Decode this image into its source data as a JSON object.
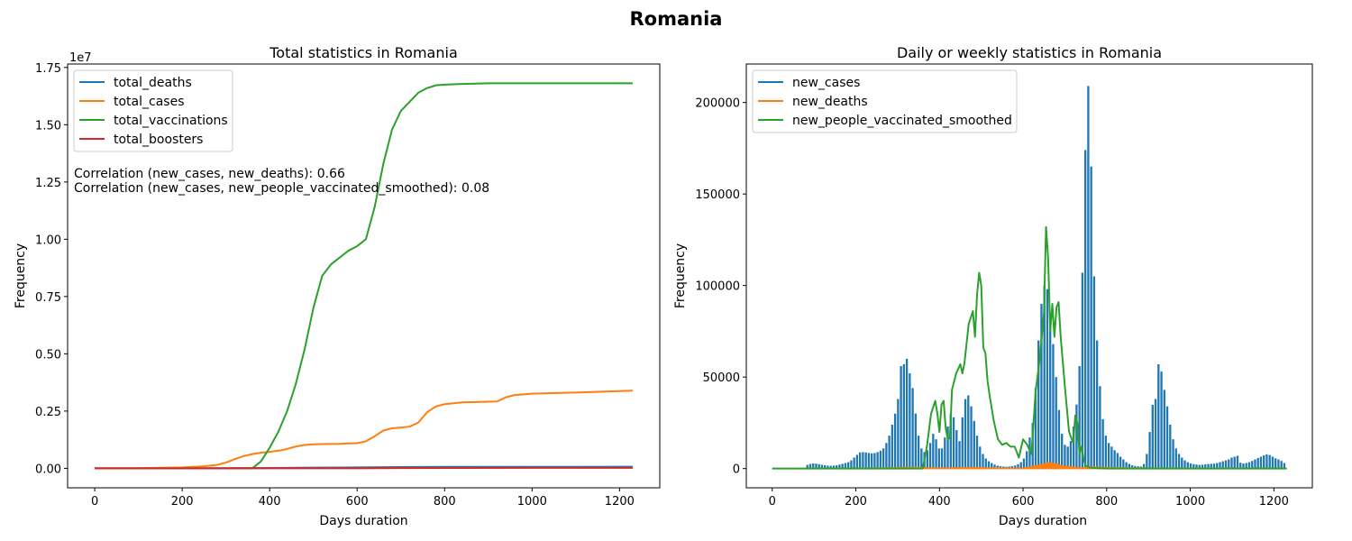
{
  "figure": {
    "suptitle": "Romania"
  },
  "colors": {
    "blue": "#1f77b4",
    "orange": "#ff7f0e",
    "green": "#2ca02c",
    "red": "#d62728"
  },
  "chart_data": [
    {
      "type": "line",
      "title": "Total statistics in Romania",
      "xlabel": "Days duration",
      "ylabel": "Frequency",
      "offset_text": "1e7",
      "xlim": [
        -62,
        1292
      ],
      "ylim": [
        -0.085,
        1.765
      ],
      "xticks": [
        0,
        200,
        400,
        600,
        800,
        1000,
        1200
      ],
      "yticks": [
        0.0,
        0.25,
        0.5,
        0.75,
        1.0,
        1.25,
        1.5,
        1.75
      ],
      "ytick_labels": [
        "0.00",
        "0.25",
        "0.50",
        "0.75",
        "1.00",
        "1.25",
        "1.50",
        "1.75"
      ],
      "legend_position": "upper left",
      "grid": false,
      "annotations": [
        "Correlation (new_cases, new_deaths): 0.66",
        "Correlation (new_cases, new_people_vaccinated_smoothed): 0.08"
      ],
      "series": [
        {
          "name": "total_deaths",
          "color": "#1f77b4",
          "x": [
            0,
            200,
            300,
            400,
            500,
            600,
            700,
            800,
            1000,
            1230
          ],
          "y": [
            0,
            0.0003,
            0.0008,
            0.0017,
            0.003,
            0.004,
            0.0055,
            0.0063,
            0.0066,
            0.0068
          ]
        },
        {
          "name": "total_cases",
          "color": "#ff7f0e",
          "x": [
            0,
            100,
            200,
            250,
            280,
            300,
            320,
            340,
            360,
            380,
            400,
            430,
            460,
            480,
            500,
            520,
            560,
            600,
            620,
            640,
            660,
            680,
            700,
            720,
            740,
            760,
            780,
            800,
            840,
            880,
            920,
            940,
            960,
            1000,
            1100,
            1230
          ],
          "y": [
            0,
            0.0005,
            0.004,
            0.009,
            0.015,
            0.025,
            0.04,
            0.053,
            0.062,
            0.068,
            0.072,
            0.08,
            0.095,
            0.102,
            0.105,
            0.106,
            0.107,
            0.11,
            0.118,
            0.14,
            0.165,
            0.175,
            0.178,
            0.182,
            0.2,
            0.245,
            0.27,
            0.28,
            0.288,
            0.29,
            0.292,
            0.31,
            0.32,
            0.326,
            0.331,
            0.339
          ]
        },
        {
          "name": "total_vaccinations",
          "color": "#2ca02c",
          "x": [
            0,
            360,
            380,
            400,
            420,
            440,
            460,
            480,
            500,
            520,
            540,
            560,
            580,
            600,
            620,
            640,
            660,
            680,
            700,
            720,
            740,
            760,
            780,
            800,
            840,
            880,
            900,
            1000,
            1100,
            1230
          ],
          "y": [
            0,
            0,
            0.03,
            0.09,
            0.16,
            0.25,
            0.37,
            0.52,
            0.7,
            0.84,
            0.89,
            0.92,
            0.95,
            0.97,
            1.0,
            1.14,
            1.33,
            1.48,
            1.56,
            1.6,
            1.64,
            1.66,
            1.672,
            1.675,
            1.678,
            1.68,
            1.681,
            1.681,
            1.681,
            1.681
          ]
        },
        {
          "name": "total_boosters",
          "color": "#d62728",
          "x": [
            0,
            600,
            700,
            800,
            1000,
            1230
          ],
          "y": [
            0,
            0,
            0.001,
            0.0018,
            0.002,
            0.0021
          ]
        }
      ]
    },
    {
      "type": "bar+line",
      "title": "Daily or weekly statistics in Romania",
      "xlabel": "Days duration",
      "ylabel": "Frequency",
      "xlim": [
        -62,
        1292
      ],
      "ylim": [
        -10500,
        221000
      ],
      "xticks": [
        0,
        200,
        400,
        600,
        800,
        1000,
        1200
      ],
      "yticks": [
        0,
        50000,
        100000,
        150000,
        200000
      ],
      "legend_position": "upper left",
      "grid": false,
      "series": [
        {
          "name": "new_cases",
          "color": "#1f77b4",
          "kind": "bar",
          "x": [
            84,
            91,
            98,
            105,
            112,
            119,
            126,
            133,
            140,
            147,
            154,
            161,
            168,
            175,
            182,
            189,
            196,
            203,
            210,
            217,
            224,
            231,
            238,
            245,
            252,
            259,
            266,
            273,
            280,
            287,
            294,
            301,
            308,
            315,
            322,
            329,
            336,
            343,
            350,
            357,
            364,
            371,
            378,
            385,
            392,
            399,
            406,
            413,
            420,
            427,
            434,
            441,
            448,
            455,
            462,
            469,
            476,
            483,
            490,
            497,
            504,
            511,
            518,
            525,
            532,
            539,
            546,
            553,
            560,
            567,
            574,
            581,
            588,
            595,
            602,
            609,
            616,
            623,
            630,
            637,
            644,
            651,
            658,
            665,
            672,
            679,
            686,
            693,
            700,
            707,
            714,
            721,
            728,
            735,
            742,
            749,
            756,
            763,
            770,
            777,
            784,
            791,
            798,
            805,
            812,
            819,
            826,
            833,
            840,
            847,
            854,
            861,
            868,
            875,
            882,
            889,
            896,
            903,
            910,
            917,
            924,
            931,
            938,
            945,
            952,
            959,
            966,
            973,
            980,
            987,
            994,
            1001,
            1008,
            1015,
            1022,
            1029,
            1036,
            1043,
            1050,
            1057,
            1064,
            1071,
            1078,
            1085,
            1092,
            1099,
            1106,
            1113,
            1120,
            1127,
            1134,
            1141,
            1148,
            1155,
            1162,
            1169,
            1176,
            1183,
            1190,
            1197,
            1204,
            1211,
            1218,
            1225
          ],
          "values": [
            2000,
            2500,
            2800,
            2700,
            2400,
            2100,
            1800,
            1600,
            1500,
            1600,
            1800,
            2200,
            2600,
            3000,
            3500,
            4500,
            6000,
            7500,
            8800,
            9000,
            8800,
            8500,
            8300,
            8500,
            9000,
            9800,
            11000,
            14000,
            18000,
            24000,
            30000,
            38000,
            56000,
            57000,
            60000,
            52000,
            44000,
            30000,
            18000,
            11000,
            9000,
            10000,
            14000,
            19000,
            16000,
            11000,
            11000,
            17000,
            23000,
            30000,
            28000,
            21000,
            15000,
            28000,
            38000,
            40000,
            34000,
            26000,
            18000,
            12000,
            8000,
            5500,
            4000,
            3000,
            2200,
            1600,
            1300,
            1100,
            1000,
            1100,
            1300,
            1700,
            2400,
            3500,
            5500,
            9500,
            17000,
            25000,
            44000,
            70000,
            90000,
            100000,
            98000,
            85000,
            68000,
            50000,
            32000,
            19000,
            13000,
            12000,
            15000,
            23000,
            35000,
            56000,
            107000,
            174000,
            209000,
            165000,
            105000,
            70000,
            45000,
            27000,
            18000,
            14000,
            12000,
            10000,
            8500,
            6500,
            5000,
            3500,
            2600,
            1800,
            1400,
            1200,
            1100,
            2500,
            8000,
            20000,
            34800,
            38000,
            57000,
            53000,
            43000,
            34000,
            24000,
            16000,
            11000,
            8000,
            6000,
            4500,
            3500,
            2800,
            2400,
            2200,
            2000,
            2100,
            2300,
            2500,
            2600,
            2700,
            3000,
            3500,
            4000,
            4500,
            5000,
            6000,
            6500,
            7000,
            3200,
            2800,
            3000,
            3500,
            4200,
            5000,
            5800,
            6500,
            7200,
            7800,
            7400,
            6500,
            5600,
            5000,
            4200,
            3000
          ]
        },
        {
          "name": "new_deaths",
          "color": "#ff7f0e",
          "kind": "area",
          "x": [
            0,
            80,
            150,
            200,
            240,
            280,
            320,
            360,
            380,
            400,
            450,
            490,
            520,
            560,
            600,
            640,
            660,
            680,
            700,
            740,
            760,
            800,
            850,
            900,
            920,
            950,
            1000,
            1230
          ],
          "y": [
            0,
            30,
            70,
            120,
            160,
            350,
            650,
            550,
            300,
            150,
            420,
            520,
            260,
            120,
            150,
            1800,
            3200,
            2400,
            1200,
            350,
            900,
            550,
            280,
            120,
            120,
            160,
            60,
            30
          ]
        },
        {
          "name": "new_people_vaccinated_smoothed",
          "color": "#2ca02c",
          "kind": "line",
          "x": [
            0,
            360,
            370,
            380,
            390,
            395,
            400,
            405,
            410,
            415,
            420,
            425,
            430,
            440,
            450,
            455,
            460,
            470,
            480,
            485,
            490,
            495,
            500,
            505,
            510,
            515,
            520,
            530,
            540,
            550,
            560,
            570,
            580,
            590,
            600,
            610,
            620,
            630,
            640,
            650,
            655,
            660,
            665,
            670,
            675,
            680,
            685,
            690,
            700,
            710,
            720,
            725,
            730,
            735,
            740,
            745,
            750,
            760,
            780,
            800,
            850,
            900,
            1000,
            1230
          ],
          "y": [
            0,
            0,
            12000,
            30000,
            37000,
            30000,
            20000,
            35000,
            37000,
            22000,
            16000,
            17000,
            43000,
            52000,
            57000,
            52000,
            58000,
            79000,
            86000,
            72000,
            95000,
            107000,
            100000,
            66000,
            63000,
            48000,
            40000,
            26000,
            16000,
            13000,
            14000,
            12000,
            12000,
            6000,
            16000,
            13000,
            8000,
            42000,
            60000,
            85000,
            132000,
            115000,
            75000,
            90000,
            72000,
            88000,
            91000,
            72000,
            45000,
            20000,
            14000,
            29000,
            25000,
            8000,
            12000,
            5000,
            1500,
            500,
            200,
            0,
            0,
            0,
            0,
            0
          ]
        }
      ]
    }
  ]
}
